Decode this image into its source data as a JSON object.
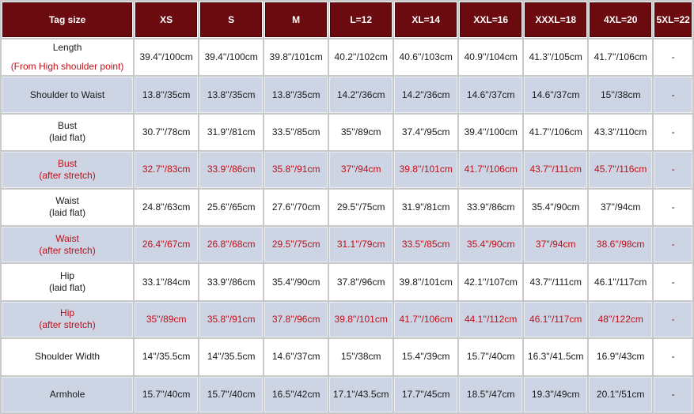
{
  "header": [
    "Tag size",
    "XS",
    "S",
    "M",
    "L=12",
    "XL=14",
    "XXL=16",
    "XXXL=18",
    "4XL=20",
    "5XL=22"
  ],
  "rows": [
    {
      "label1": "Length",
      "label2": "(From High shoulder point)",
      "label2_red": true,
      "values": [
        "39.4''/100cm",
        "39.4''/100cm",
        "39.8''/101cm",
        "40.2''/102cm",
        "40.6''/103cm",
        "40.9''/104cm",
        "41.3''/105cm",
        "41.7''/106cm",
        "-"
      ]
    },
    {
      "label1": "Shoulder to Waist",
      "label2": "",
      "values": [
        "13.8''/35cm",
        "13.8''/35cm",
        "13.8''/35cm",
        "14.2''/36cm",
        "14.2''/36cm",
        "14.6''/37cm",
        "14.6''/37cm",
        "15''/38cm",
        "-"
      ]
    },
    {
      "label1": "Bust",
      "label2": "(laid flat)",
      "values": [
        "30.7''/78cm",
        "31.9''/81cm",
        "33.5''/85cm",
        "35''/89cm",
        "37.4''/95cm",
        "39.4''/100cm",
        "41.7''/106cm",
        "43.3''/110cm",
        "-"
      ]
    },
    {
      "label1": "Bust",
      "label2": "(after stretch)",
      "values": [
        "32.7''/83cm",
        "33.9''/86cm",
        "35.8''/91cm",
        "37''/94cm",
        "39.8''/101cm",
        "41.7''/106cm",
        "43.7''/111cm",
        "45.7''/116cm",
        "-"
      ]
    },
    {
      "label1": "Waist",
      "label2": "(laid flat)",
      "values": [
        "24.8''/63cm",
        "25.6''/65cm",
        "27.6''/70cm",
        "29.5''/75cm",
        "31.9''/81cm",
        "33.9''/86cm",
        "35.4''/90cm",
        "37''/94cm",
        "-"
      ]
    },
    {
      "label1": "Waist",
      "label2": "(after stretch)",
      "values": [
        "26.4''/67cm",
        "26.8''/68cm",
        "29.5''/75cm",
        "31.1''/79cm",
        "33.5''/85cm",
        "35.4''/90cm",
        "37''/94cm",
        "38.6''/98cm",
        "-"
      ]
    },
    {
      "label1": "Hip",
      "label2": "(laid flat)",
      "values": [
        "33.1''/84cm",
        "33.9''/86cm",
        "35.4''/90cm",
        "37.8''/96cm",
        "39.8''/101cm",
        "42.1''/107cm",
        "43.7''/111cm",
        "46.1''/117cm",
        "-"
      ]
    },
    {
      "label1": "Hip",
      "label2": "(after stretch)",
      "values": [
        "35''/89cm",
        "35.8''/91cm",
        "37.8''/96cm",
        "39.8''/101cm",
        "41.7''/106cm",
        "44.1''/112cm",
        "46.1''/117cm",
        "48''/122cm",
        "-"
      ]
    },
    {
      "label1": "Shoulder Width",
      "label2": "",
      "values": [
        "14''/35.5cm",
        "14''/35.5cm",
        "14.6''/37cm",
        "15''/38cm",
        "15.4''/39cm",
        "15.7''/40cm",
        "16.3''/41.5cm",
        "16.9''/43cm",
        "-"
      ]
    },
    {
      "label1": "Armhole",
      "label2": "",
      "values": [
        "15.7''/40cm",
        "15.7''/40cm",
        "16.5''/42cm",
        "17.1''/43.5cm",
        "17.7''/45cm",
        "18.5''/47cm",
        "19.3''/49cm",
        "20.1''/51cm",
        "-"
      ]
    }
  ],
  "colors": {
    "header_bg": "#6b0a0f",
    "shade_bg": "#cdd4e3",
    "accent_red": "#c0101a"
  }
}
